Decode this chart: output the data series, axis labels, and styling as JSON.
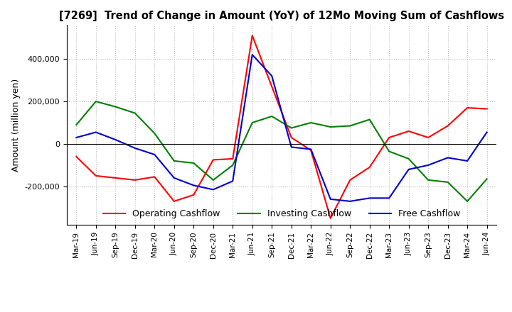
{
  "title": "[7269]  Trend of Change in Amount (YoY) of 12Mo Moving Sum of Cashflows",
  "ylabel": "Amount (million yen)",
  "background_color": "#ffffff",
  "grid_color": "#bbbbbb",
  "dates": [
    "Mar-19",
    "Jun-19",
    "Sep-19",
    "Dec-19",
    "Mar-20",
    "Jun-20",
    "Sep-20",
    "Dec-20",
    "Mar-21",
    "Jun-21",
    "Sep-21",
    "Dec-21",
    "Mar-22",
    "Jun-22",
    "Sep-22",
    "Dec-22",
    "Mar-23",
    "Jun-23",
    "Sep-23",
    "Dec-23",
    "Mar-24",
    "Jun-24"
  ],
  "operating": [
    -60000,
    -150000,
    -160000,
    -170000,
    -155000,
    -270000,
    -240000,
    -75000,
    -70000,
    510000,
    270000,
    30000,
    -30000,
    -350000,
    -170000,
    -110000,
    30000,
    60000,
    30000,
    85000,
    170000,
    165000
  ],
  "investing": [
    90000,
    200000,
    175000,
    145000,
    50000,
    -80000,
    -90000,
    -170000,
    -100000,
    100000,
    130000,
    75000,
    100000,
    80000,
    85000,
    115000,
    -35000,
    -70000,
    -170000,
    -180000,
    -270000,
    -165000
  ],
  "free": [
    30000,
    55000,
    20000,
    -20000,
    -50000,
    -160000,
    -195000,
    -215000,
    -175000,
    420000,
    320000,
    -15000,
    -25000,
    -260000,
    -270000,
    -255000,
    -255000,
    -120000,
    -100000,
    -65000,
    -80000,
    55000
  ],
  "operating_color": "#ff0000",
  "investing_color": "#008000",
  "free_color": "#0000cc",
  "ylim": [
    -380000,
    560000
  ],
  "yticks": [
    -200000,
    0,
    200000,
    400000
  ]
}
